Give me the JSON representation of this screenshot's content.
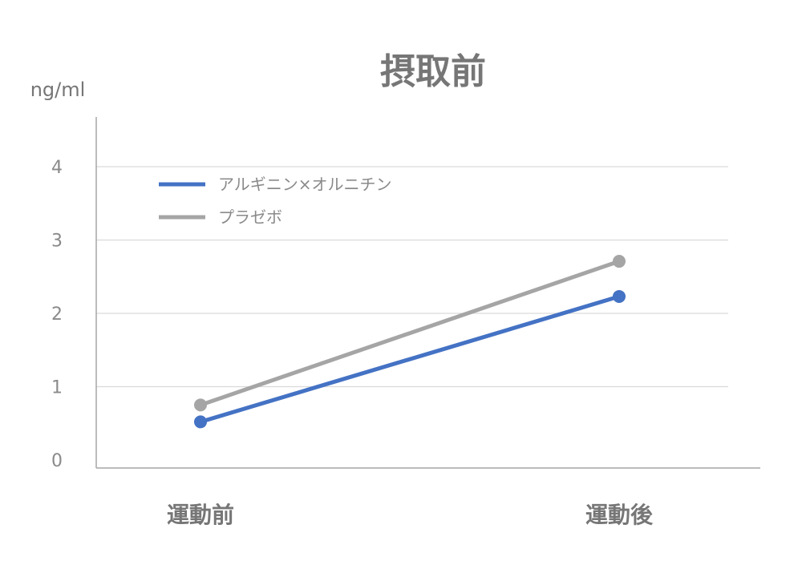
{
  "chart_data": {
    "type": "line",
    "title": "摂取前",
    "ylabel": "ng/ml",
    "xlabel": "",
    "categories": [
      "運動前",
      "運動後"
    ],
    "yticks": [
      "0",
      "1",
      "2",
      "3",
      "4"
    ],
    "ylim": [
      0,
      4.2
    ],
    "grid": true,
    "legend_position": "top-left",
    "series": [
      {
        "name": "アルギニン×オルニチン",
        "color": "#4472C4",
        "values": [
          0.52,
          2.23
        ]
      },
      {
        "name": "プラゼボ",
        "color": "#A5A5A5",
        "values": [
          0.75,
          2.71
        ]
      }
    ]
  }
}
